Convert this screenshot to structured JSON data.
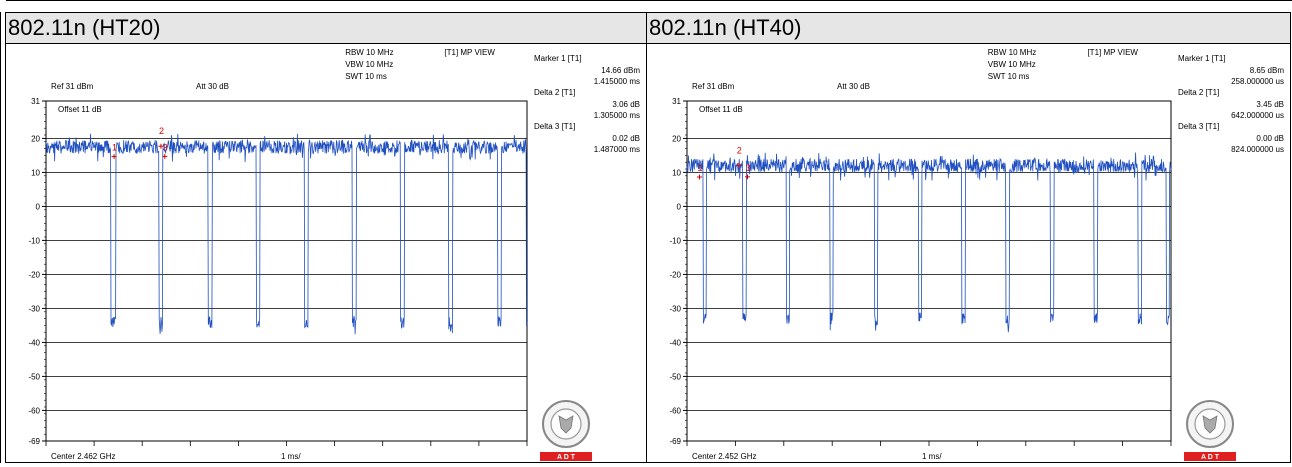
{
  "panels": [
    {
      "title": "802.11n (HT20)",
      "ref": "Ref 31 dBm",
      "att": "Att  30 dB",
      "offset": "Offset 11 dB",
      "rbw": "RBW 10 MHz",
      "vbw": "VBW 10 MHz",
      "swt": "SWT 10 ms",
      "view": "[T1] MP VIEW",
      "center": "Center 2.462 GHz",
      "span": "1 ms/",
      "markers": [
        {
          "label": "Marker 1 [T1]",
          "value": "14.66 dBm",
          "pos": "1.415000 ms"
        },
        {
          "label": "Delta 2 [T1]",
          "value": "3.06 dB",
          "pos": "1.305000 ms"
        },
        {
          "label": "Delta 3 [T1]",
          "value": "0.02 dB",
          "pos": "1.487000 ms"
        }
      ],
      "logo_text": "A    D    T"
    },
    {
      "title": "802.11n (HT40)",
      "ref": "Ref 31 dBm",
      "att": "Att  30 dB",
      "offset": "Offset 11 dB",
      "rbw": "RBW 10 MHz",
      "vbw": "VBW 10 MHz",
      "swt": "SWT 10 ms",
      "view": "[T1] MP VIEW",
      "center": "Center 2.452 GHz",
      "span": "1 ms/",
      "markers": [
        {
          "label": "Marker 1 [T1]",
          "value": "8.65 dBm",
          "pos": "258.000000 us"
        },
        {
          "label": "Delta 2 [T1]",
          "value": "3.45 dB",
          "pos": "642.000000 us"
        },
        {
          "label": "Delta 3 [T1]",
          "value": "0.00 dB",
          "pos": "824.000000 us"
        }
      ],
      "logo_text": "A    D    T"
    }
  ],
  "chart_data": [
    {
      "type": "line",
      "title": "802.11n (HT20)",
      "ylabel": "dBm",
      "yticks": [
        "31",
        "20",
        "10",
        "0",
        "-10",
        "-20",
        "-30",
        "-40",
        "-50",
        "-60",
        "-69"
      ],
      "ylim": [
        -69,
        31
      ],
      "xlim": [
        0,
        10
      ],
      "x_unit": "ms",
      "grid": true,
      "series": [
        {
          "high_level": 17.5,
          "low_level": -34,
          "color": "#1f4fc0",
          "gaps_ms": [
            [
              1.35,
              1.45
            ],
            [
              2.35,
              2.42
            ],
            [
              3.37,
              3.45
            ],
            [
              4.37,
              4.45
            ],
            [
              5.37,
              5.45
            ],
            [
              6.37,
              6.45
            ],
            [
              7.37,
              7.45
            ],
            [
              8.37,
              8.45
            ],
            [
              9.39,
              9.47
            ],
            [
              9.99,
              10.0
            ]
          ]
        }
      ],
      "marker_points": [
        {
          "id": "1",
          "x": 1.415,
          "y": 14.66
        },
        {
          "id": "2",
          "x": 2.39,
          "y": 17.7
        },
        {
          "id": "3",
          "x": 2.47,
          "y": 14.7
        }
      ]
    },
    {
      "type": "line",
      "title": "802.11n (HT40)",
      "ylabel": "dBm",
      "yticks": [
        "31",
        "20",
        "10",
        "0",
        "-10",
        "-20",
        "-30",
        "-40",
        "-50",
        "-60",
        "-69"
      ],
      "ylim": [
        -69,
        31
      ],
      "xlim": [
        0,
        10
      ],
      "x_unit": "ms",
      "grid": true,
      "series": [
        {
          "high_level": 12.0,
          "low_level": -33,
          "color": "#1f4fc0",
          "gaps_ms": [
            [
              0.33,
              0.4
            ],
            [
              1.15,
              1.23
            ],
            [
              2.05,
              2.12
            ],
            [
              2.95,
              3.02
            ],
            [
              3.87,
              3.94
            ],
            [
              4.78,
              4.85
            ],
            [
              5.68,
              5.75
            ],
            [
              6.59,
              6.66
            ],
            [
              7.51,
              7.58
            ],
            [
              8.41,
              8.48
            ],
            [
              9.32,
              9.39
            ],
            [
              9.9,
              9.97
            ]
          ]
        }
      ],
      "marker_points": [
        {
          "id": "1",
          "x": 0.258,
          "y": 8.65
        },
        {
          "id": "2",
          "x": 1.07,
          "y": 12.1
        },
        {
          "id": "3",
          "x": 1.25,
          "y": 8.7
        }
      ]
    }
  ]
}
